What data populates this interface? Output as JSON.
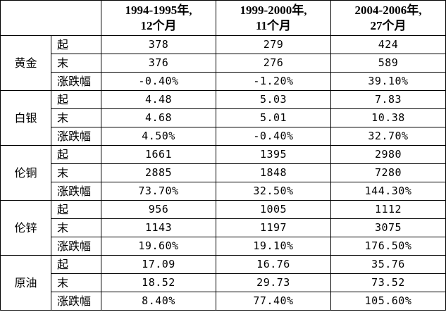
{
  "table": {
    "columns": [
      {
        "line1": "1994-1995年,",
        "line2": "12个月"
      },
      {
        "line1": "1999-2000年,",
        "line2": "11个月"
      },
      {
        "line1": "2004-2006年,",
        "line2": "27个月"
      }
    ],
    "commodities": [
      {
        "name": "黄金",
        "rows": [
          {
            "label": "起",
            "values": [
              "378",
              "279",
              "424"
            ]
          },
          {
            "label": "末",
            "values": [
              "376",
              "276",
              "589"
            ]
          },
          {
            "label": "涨跌幅",
            "values": [
              "-0.40%",
              "-1.20%",
              "39.10%"
            ]
          }
        ]
      },
      {
        "name": "白银",
        "rows": [
          {
            "label": "起",
            "values": [
              "4.48",
              "5.03",
              "7.83"
            ]
          },
          {
            "label": "末",
            "values": [
              "4.68",
              "5.01",
              "10.38"
            ]
          },
          {
            "label": "涨跌幅",
            "values": [
              "4.50%",
              "-0.40%",
              "32.70%"
            ]
          }
        ]
      },
      {
        "name": "伦铜",
        "rows": [
          {
            "label": "起",
            "values": [
              "1661",
              "1395",
              "2980"
            ]
          },
          {
            "label": "末",
            "values": [
              "2885",
              "1848",
              "7280"
            ]
          },
          {
            "label": "涨跌幅",
            "values": [
              "73.70%",
              "32.50%",
              "144.30%"
            ]
          }
        ]
      },
      {
        "name": "伦锌",
        "rows": [
          {
            "label": "起",
            "values": [
              "956",
              "1005",
              "1112"
            ]
          },
          {
            "label": "末",
            "values": [
              "1143",
              "1197",
              "3075"
            ]
          },
          {
            "label": "涨跌幅",
            "values": [
              "19.60%",
              "19.10%",
              "176.50%"
            ]
          }
        ]
      },
      {
        "name": "原油",
        "rows": [
          {
            "label": "起",
            "values": [
              "17.09",
              "16.76",
              "35.76"
            ]
          },
          {
            "label": "末",
            "values": [
              "18.52",
              "29.73",
              "73.52"
            ]
          },
          {
            "label": "涨跌幅",
            "values": [
              "8.40%",
              "77.40%",
              "105.60%"
            ]
          }
        ]
      }
    ]
  }
}
